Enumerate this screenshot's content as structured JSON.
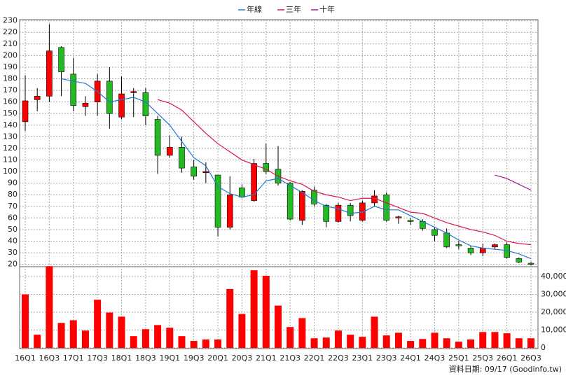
{
  "chart_data": {
    "type": "candlestick",
    "categories": [
      "16Q1",
      null,
      "16Q3",
      null,
      "17Q1",
      null,
      "17Q3",
      null,
      "18Q1",
      null,
      "18Q3",
      null,
      "19Q1",
      null,
      "19Q3",
      null,
      "20Q1",
      null,
      "20Q3",
      null,
      "21Q1",
      null,
      "21Q3",
      null,
      "22Q1",
      null,
      "22Q3",
      null,
      "23Q1",
      null,
      "23Q3",
      null,
      "24Q1",
      null,
      "24Q3",
      null,
      "25Q1",
      null,
      "25Q3",
      null,
      "26Q1",
      null,
      "26Q3"
    ],
    "open": [
      143,
      162,
      165,
      207,
      184,
      156,
      160,
      178,
      147,
      168,
      168,
      145,
      114,
      121,
      104,
      99,
      97,
      52,
      86,
      75,
      107,
      102,
      90,
      58,
      84,
      71,
      57,
      71,
      58,
      73,
      80,
      60,
      58,
      57,
      50,
      47,
      37,
      34,
      30,
      35,
      37,
      25,
      21
    ],
    "high": [
      183,
      172,
      227,
      208,
      198,
      165,
      184,
      190,
      182,
      172,
      172,
      148,
      131,
      130,
      110,
      108,
      97,
      96,
      89,
      111,
      124,
      122,
      91,
      84,
      87,
      72,
      73,
      73,
      75,
      84,
      82,
      62,
      60,
      59,
      52,
      51,
      40,
      36,
      38,
      38,
      39,
      26,
      22
    ],
    "low": [
      135,
      152,
      160,
      165,
      152,
      148,
      148,
      137,
      145,
      147,
      140,
      98,
      112,
      99,
      93,
      90,
      44,
      50,
      77,
      74,
      98,
      88,
      58,
      54,
      70,
      52,
      56,
      57,
      57,
      70,
      57,
      55,
      54,
      49,
      40,
      34,
      33,
      28,
      27,
      33,
      25,
      21,
      19
    ],
    "close": [
      161,
      165,
      204,
      186,
      157,
      159,
      178,
      150,
      167,
      169,
      148,
      114,
      121,
      103,
      96,
      100,
      52,
      80,
      78,
      107,
      100,
      90,
      59,
      83,
      72,
      57,
      71,
      62,
      73,
      79,
      58,
      61,
      57,
      51,
      45,
      35,
      36,
      30,
      34,
      37,
      26,
      22,
      20
    ],
    "up_color": "#ff0000",
    "down_color": "#22bb22",
    "series": [
      {
        "name": "年線",
        "color": "#1e78d2",
        "values": [
          null,
          null,
          null,
          180,
          178,
          176,
          169,
          160,
          162,
          164,
          160,
          150,
          140,
          126,
          112,
          105,
          87,
          81,
          78,
          80,
          92,
          94,
          88,
          82,
          75,
          70,
          68,
          64,
          65,
          70,
          67,
          67,
          62,
          57,
          52,
          47,
          41,
          36,
          34,
          33,
          32,
          29,
          25
        ]
      },
      {
        "name": "三年",
        "color": "#dc1450",
        "values": [
          null,
          null,
          null,
          null,
          null,
          null,
          null,
          null,
          null,
          null,
          null,
          162,
          159,
          153,
          143,
          133,
          124,
          117,
          110,
          106,
          102,
          96,
          92,
          89,
          83,
          80,
          78,
          75,
          77,
          77,
          73,
          69,
          65,
          64,
          60,
          56,
          53,
          50,
          48,
          45,
          40,
          38,
          37
        ]
      },
      {
        "name": "十年",
        "color": "#a0188c",
        "values": [
          null,
          null,
          null,
          null,
          null,
          null,
          null,
          null,
          null,
          null,
          null,
          null,
          null,
          null,
          null,
          null,
          null,
          null,
          null,
          null,
          null,
          null,
          null,
          null,
          null,
          null,
          null,
          null,
          null,
          null,
          null,
          null,
          null,
          null,
          null,
          null,
          null,
          null,
          null,
          97,
          94,
          89,
          84
        ]
      }
    ],
    "ylim": [
      18,
      231
    ],
    "yticks": [
      20,
      30,
      40,
      50,
      60,
      70,
      80,
      90,
      100,
      110,
      120,
      130,
      140,
      150,
      160,
      170,
      180,
      190,
      200,
      210,
      220,
      230
    ],
    "volume": {
      "color": "#ff0000",
      "axis": "y2",
      "values": [
        30000,
        7400,
        45800,
        14000,
        15500,
        9700,
        27000,
        19800,
        17500,
        6600,
        10500,
        12800,
        11300,
        6600,
        3900,
        4700,
        4700,
        33000,
        19000,
        43500,
        40400,
        23700,
        11700,
        16700,
        5400,
        5800,
        9700,
        7400,
        6200,
        17500,
        7000,
        8500,
        3900,
        5000,
        8500,
        5400,
        3500,
        4700,
        8900,
        8900,
        8200,
        5400,
        5400
      ]
    },
    "y2lim": [
      0,
      45500
    ],
    "y2ticks": [
      0,
      {
        "value": 10000,
        "label": "10,000"
      },
      {
        "value": 20000,
        "label": "20,000"
      },
      {
        "value": 30000,
        "label": "30,000"
      },
      {
        "value": 40000,
        "label": "40,000"
      }
    ],
    "grid": true,
    "footer": "資料日期: 09/17 (Goodinfo.tw)"
  }
}
